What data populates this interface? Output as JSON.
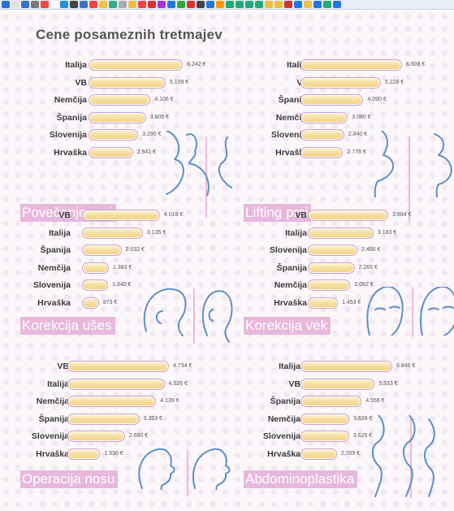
{
  "browser_toolbar": {
    "icons": [
      "p-icon",
      "doc-icon",
      "mail-icon",
      "cut-icon",
      "heart-icon",
      "doc-icon",
      "ie-icon",
      "chart-icon",
      "mail-icon",
      "heart-icon",
      "notes-icon",
      "shield-icon",
      "doc-icon",
      "notes-icon",
      "heart-icon",
      "red-icon",
      "purple-icon",
      "blue-icon",
      "green-icon",
      "red-icon",
      "chart-icon",
      "blue-icon",
      "paint-icon",
      "excel-icon",
      "excel-icon",
      "excel-icon",
      "excel-icon",
      "folder-icon",
      "folder-icon",
      "news-icon",
      "blue-icon",
      "folder-icon",
      "blue-icon",
      "excel-icon",
      "help-icon"
    ]
  },
  "title": "Cene posameznih tretmajev",
  "colors": {
    "bar_fill": "#f4dc99",
    "bar_border": "#c9a3c9",
    "title_band": "#e8b8dc",
    "figure_stroke": "#5b8fc9",
    "accent_line": "#f0b7de"
  },
  "chart_data": [
    {
      "type": "bar",
      "orientation": "horizontal",
      "title": "Povečanje prsi",
      "categories": [
        "Italija",
        "VB",
        "Nemčija",
        "Španija",
        "Slovenija",
        "Hrvaška"
      ],
      "values": [
        6242,
        5109,
        4106,
        3805,
        3290,
        2941
      ],
      "value_labels": [
        "6.242 €",
        "5.109 €",
        "4.106 €",
        "3.805 €",
        "3.290 €",
        "2.941 €"
      ],
      "max": 6242,
      "figure": "breast-profile-icon"
    },
    {
      "type": "bar",
      "orientation": "horizontal",
      "title": "Lifting prsi",
      "categories": [
        "Italija",
        "VB",
        "Španija",
        "Nemčija",
        "Slovenija",
        "Hrvaška"
      ],
      "values": [
        6608,
        5228,
        4090,
        3080,
        2840,
        2775
      ],
      "value_labels": [
        "6.608 €",
        "5.228 €",
        "4.090 €",
        "3.080 €",
        "2.840 €",
        "2.775 €"
      ],
      "max": 6608,
      "figure": "breast-lift-profile-icon"
    },
    {
      "type": "bar",
      "orientation": "horizontal",
      "title": "Korekcija ušes",
      "categories": [
        "VB",
        "Italija",
        "Španija",
        "Nemčija",
        "Slovenija",
        "Hrvaška"
      ],
      "values": [
        4018,
        3135,
        2032,
        1383,
        1340,
        873
      ],
      "value_labels": [
        "4.018 €",
        "3.135 €",
        "2.032 €",
        "1.383 €",
        "1.340 €",
        "873 €"
      ],
      "max": 4018,
      "figure": "head-ears-icon"
    },
    {
      "type": "bar",
      "orientation": "horizontal",
      "title": "Korekcija vek",
      "categories": [
        "VB",
        "Italija",
        "Slovenija",
        "Španija",
        "Nemčija",
        "Hrvaška"
      ],
      "values": [
        3894,
        3183,
        2400,
        2265,
        2062,
        1453
      ],
      "value_labels": [
        "3.894 €",
        "3.183 €",
        "2.400 €",
        "2.265 €",
        "2.062 €",
        "1.453 €"
      ],
      "max": 3894,
      "figure": "face-eyelids-icon"
    },
    {
      "type": "bar",
      "orientation": "horizontal",
      "title": "Operacija nosu",
      "categories": [
        "VB",
        "Italija",
        "Nemčija",
        "Španija",
        "Slovenija",
        "Hrvaška"
      ],
      "values": [
        4734,
        4526,
        4139,
        3353,
        2680,
        1530
      ],
      "value_labels": [
        "4.734 €",
        "4.526 €",
        "4.139 €",
        "3.353 €",
        "2.680 €",
        "1.530 €"
      ],
      "max": 4734,
      "figure": "nose-profile-icon"
    },
    {
      "type": "bar",
      "orientation": "horizontal",
      "title": "Abdominoplastika",
      "categories": [
        "Italija",
        "VB",
        "Španija",
        "Nemčija",
        "Slovenija",
        "Hrvaška"
      ],
      "values": [
        6846,
        5533,
        4556,
        3639,
        3625,
        2709
      ],
      "value_labels": [
        "6.846 €",
        "5.533 €",
        "4.556 €",
        "3.639 €",
        "3.625 €",
        "2.709 €"
      ],
      "max": 6846,
      "figure": "torso-profile-icon"
    }
  ]
}
